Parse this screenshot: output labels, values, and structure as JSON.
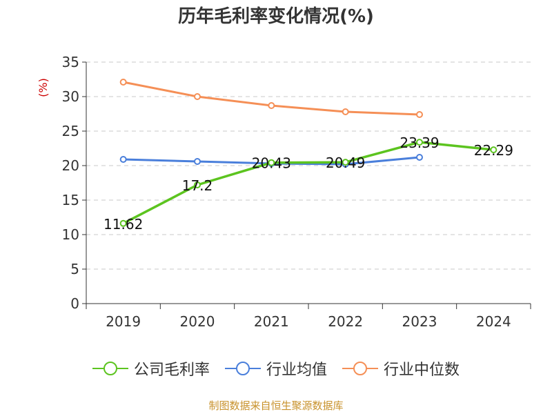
{
  "chart_data": {
    "type": "line",
    "title": "历年毛利率变化情况(%)",
    "ylabel": "(%)",
    "xlabel": "",
    "categories": [
      "2019",
      "2020",
      "2021",
      "2022",
      "2023",
      "2024"
    ],
    "ylim": [
      0,
      35
    ],
    "yticks": [
      0,
      5,
      10,
      15,
      20,
      25,
      30,
      35
    ],
    "grid": true,
    "legend_position": "bottom",
    "series": [
      {
        "name": "公司毛利率",
        "color": "#5cc41f",
        "values": [
          11.62,
          17.2,
          20.43,
          20.49,
          23.39,
          22.29
        ],
        "data_labels": [
          "11.62",
          "17.2",
          "20.43",
          "20.49",
          "23.39",
          "22.29"
        ]
      },
      {
        "name": "行业均值",
        "color": "#4a7fdb",
        "values": [
          20.9,
          20.6,
          20.3,
          20.2,
          21.2,
          null
        ]
      },
      {
        "name": "行业中位数",
        "color": "#f58f56",
        "values": [
          32.1,
          30.0,
          28.7,
          27.8,
          27.4,
          null
        ]
      }
    ]
  },
  "footer": {
    "source": "制图数据来自恒生聚源数据库"
  }
}
